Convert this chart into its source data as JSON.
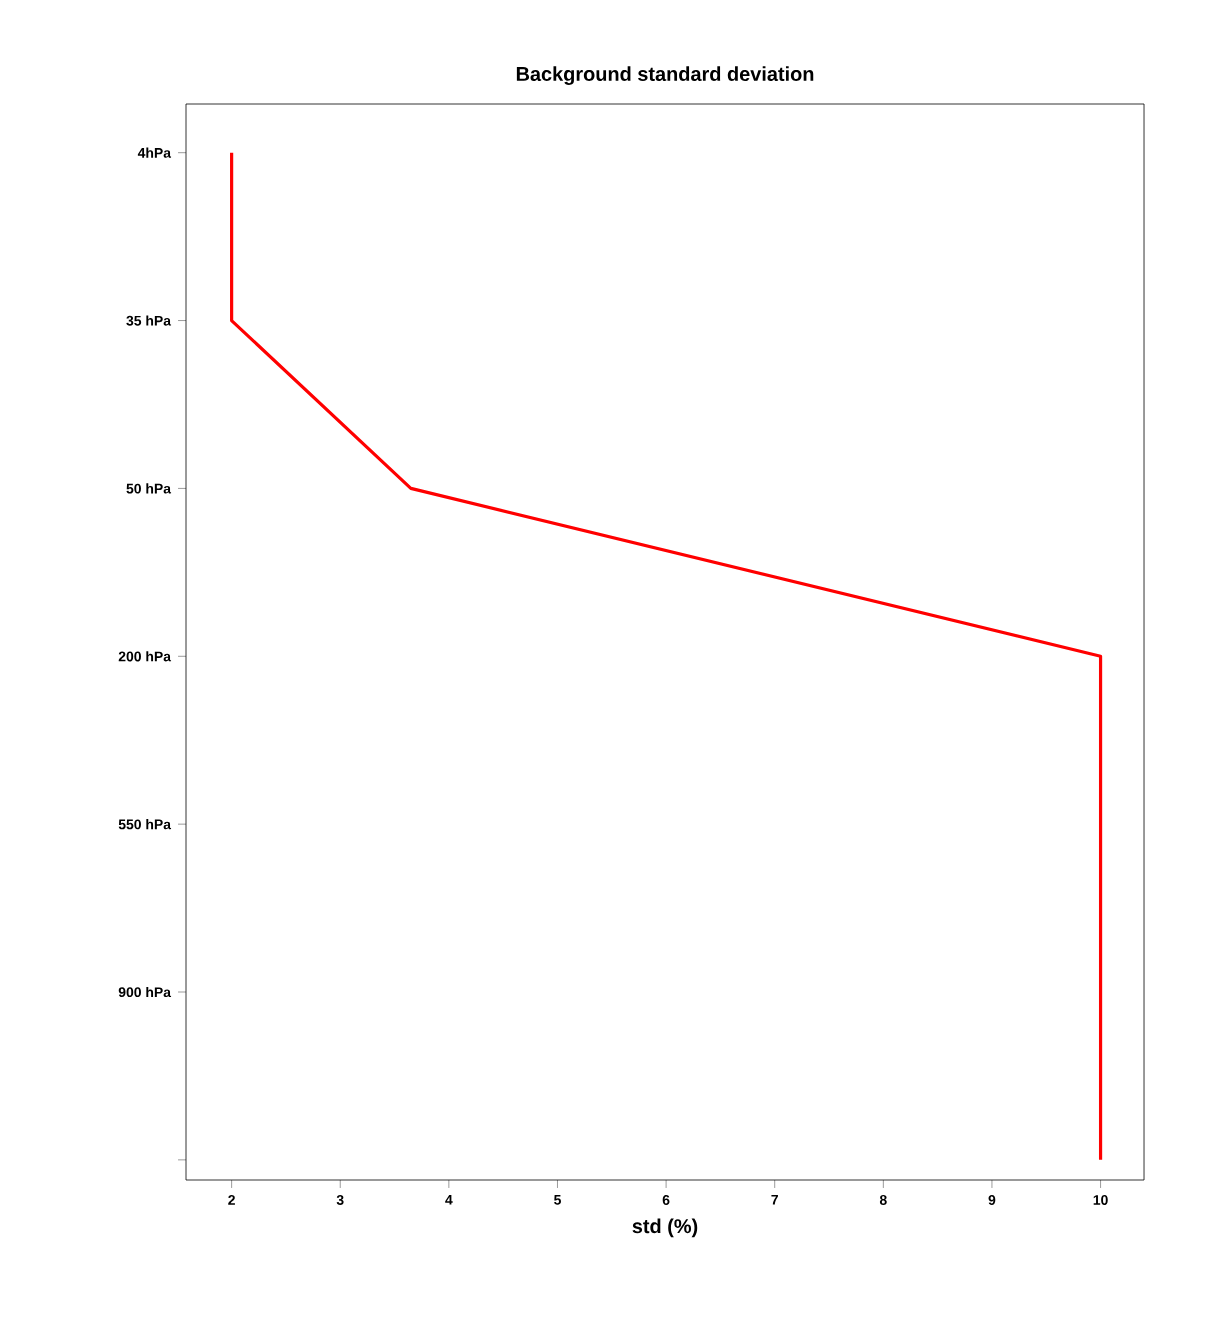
{
  "chart_data": {
    "type": "line",
    "orientation": "horizontal",
    "title": "Background standard deviation",
    "xlabel": "std (%)",
    "xlim": [
      1.58,
      10.4
    ],
    "xticks": [
      2,
      3,
      4,
      5,
      6,
      7,
      8,
      9,
      10
    ],
    "categories": [
      "4hPa",
      "35 hPa",
      "50 hPa",
      "200 hPa",
      "550 hPa",
      "900 hPa",
      null
    ],
    "series": [
      {
        "color": "#ff0000",
        "values": [
          2.0,
          2.0,
          3.65,
          10.0,
          10.0,
          10.0,
          10.0
        ]
      }
    ]
  }
}
